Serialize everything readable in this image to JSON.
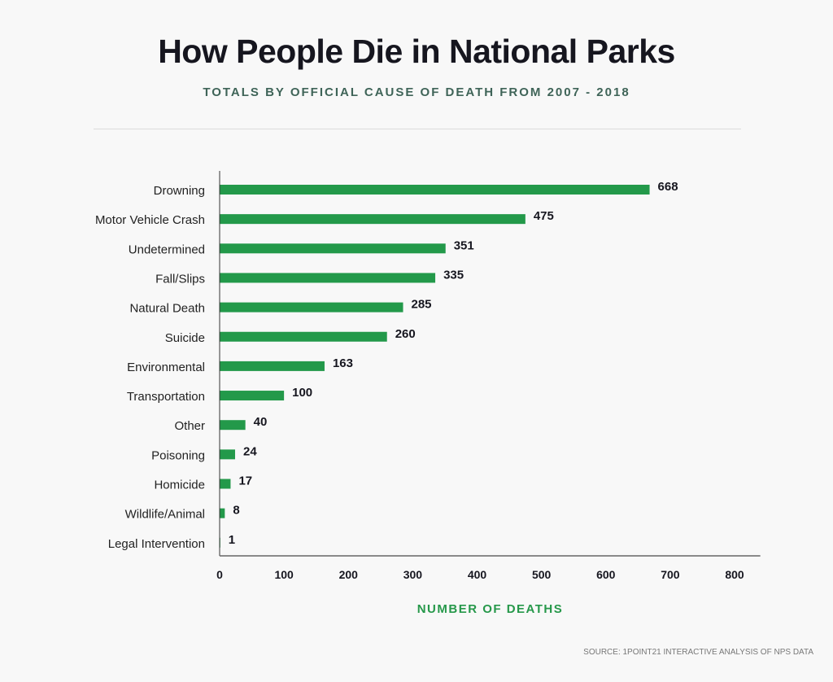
{
  "chart_data": {
    "type": "bar",
    "orientation": "horizontal",
    "title": "How People Die in National Parks",
    "subtitle": "TOTALS BY OFFICIAL CAUSE OF DEATH FROM 2007 - 2018",
    "xlabel": "NUMBER OF DEATHS",
    "ylabel": "",
    "categories": [
      "Drowning",
      "Motor Vehicle Crash",
      "Undetermined",
      "Fall/Slips",
      "Natural Death",
      "Suicide",
      "Environmental",
      "Transportation",
      "Other",
      "Poisoning",
      "Homicide",
      "Wildlife/Animal",
      "Legal Intervention"
    ],
    "values": [
      668,
      475,
      351,
      335,
      285,
      260,
      163,
      100,
      40,
      24,
      17,
      8,
      1
    ],
    "xlim": [
      0,
      840
    ],
    "xticks": [
      0,
      100,
      200,
      300,
      400,
      500,
      600,
      700,
      800
    ],
    "grid": false,
    "bar_color": "#23994a",
    "source": "SOURCE: 1POINT21 INTERACTIVE ANALYSIS OF NPS DATA"
  }
}
